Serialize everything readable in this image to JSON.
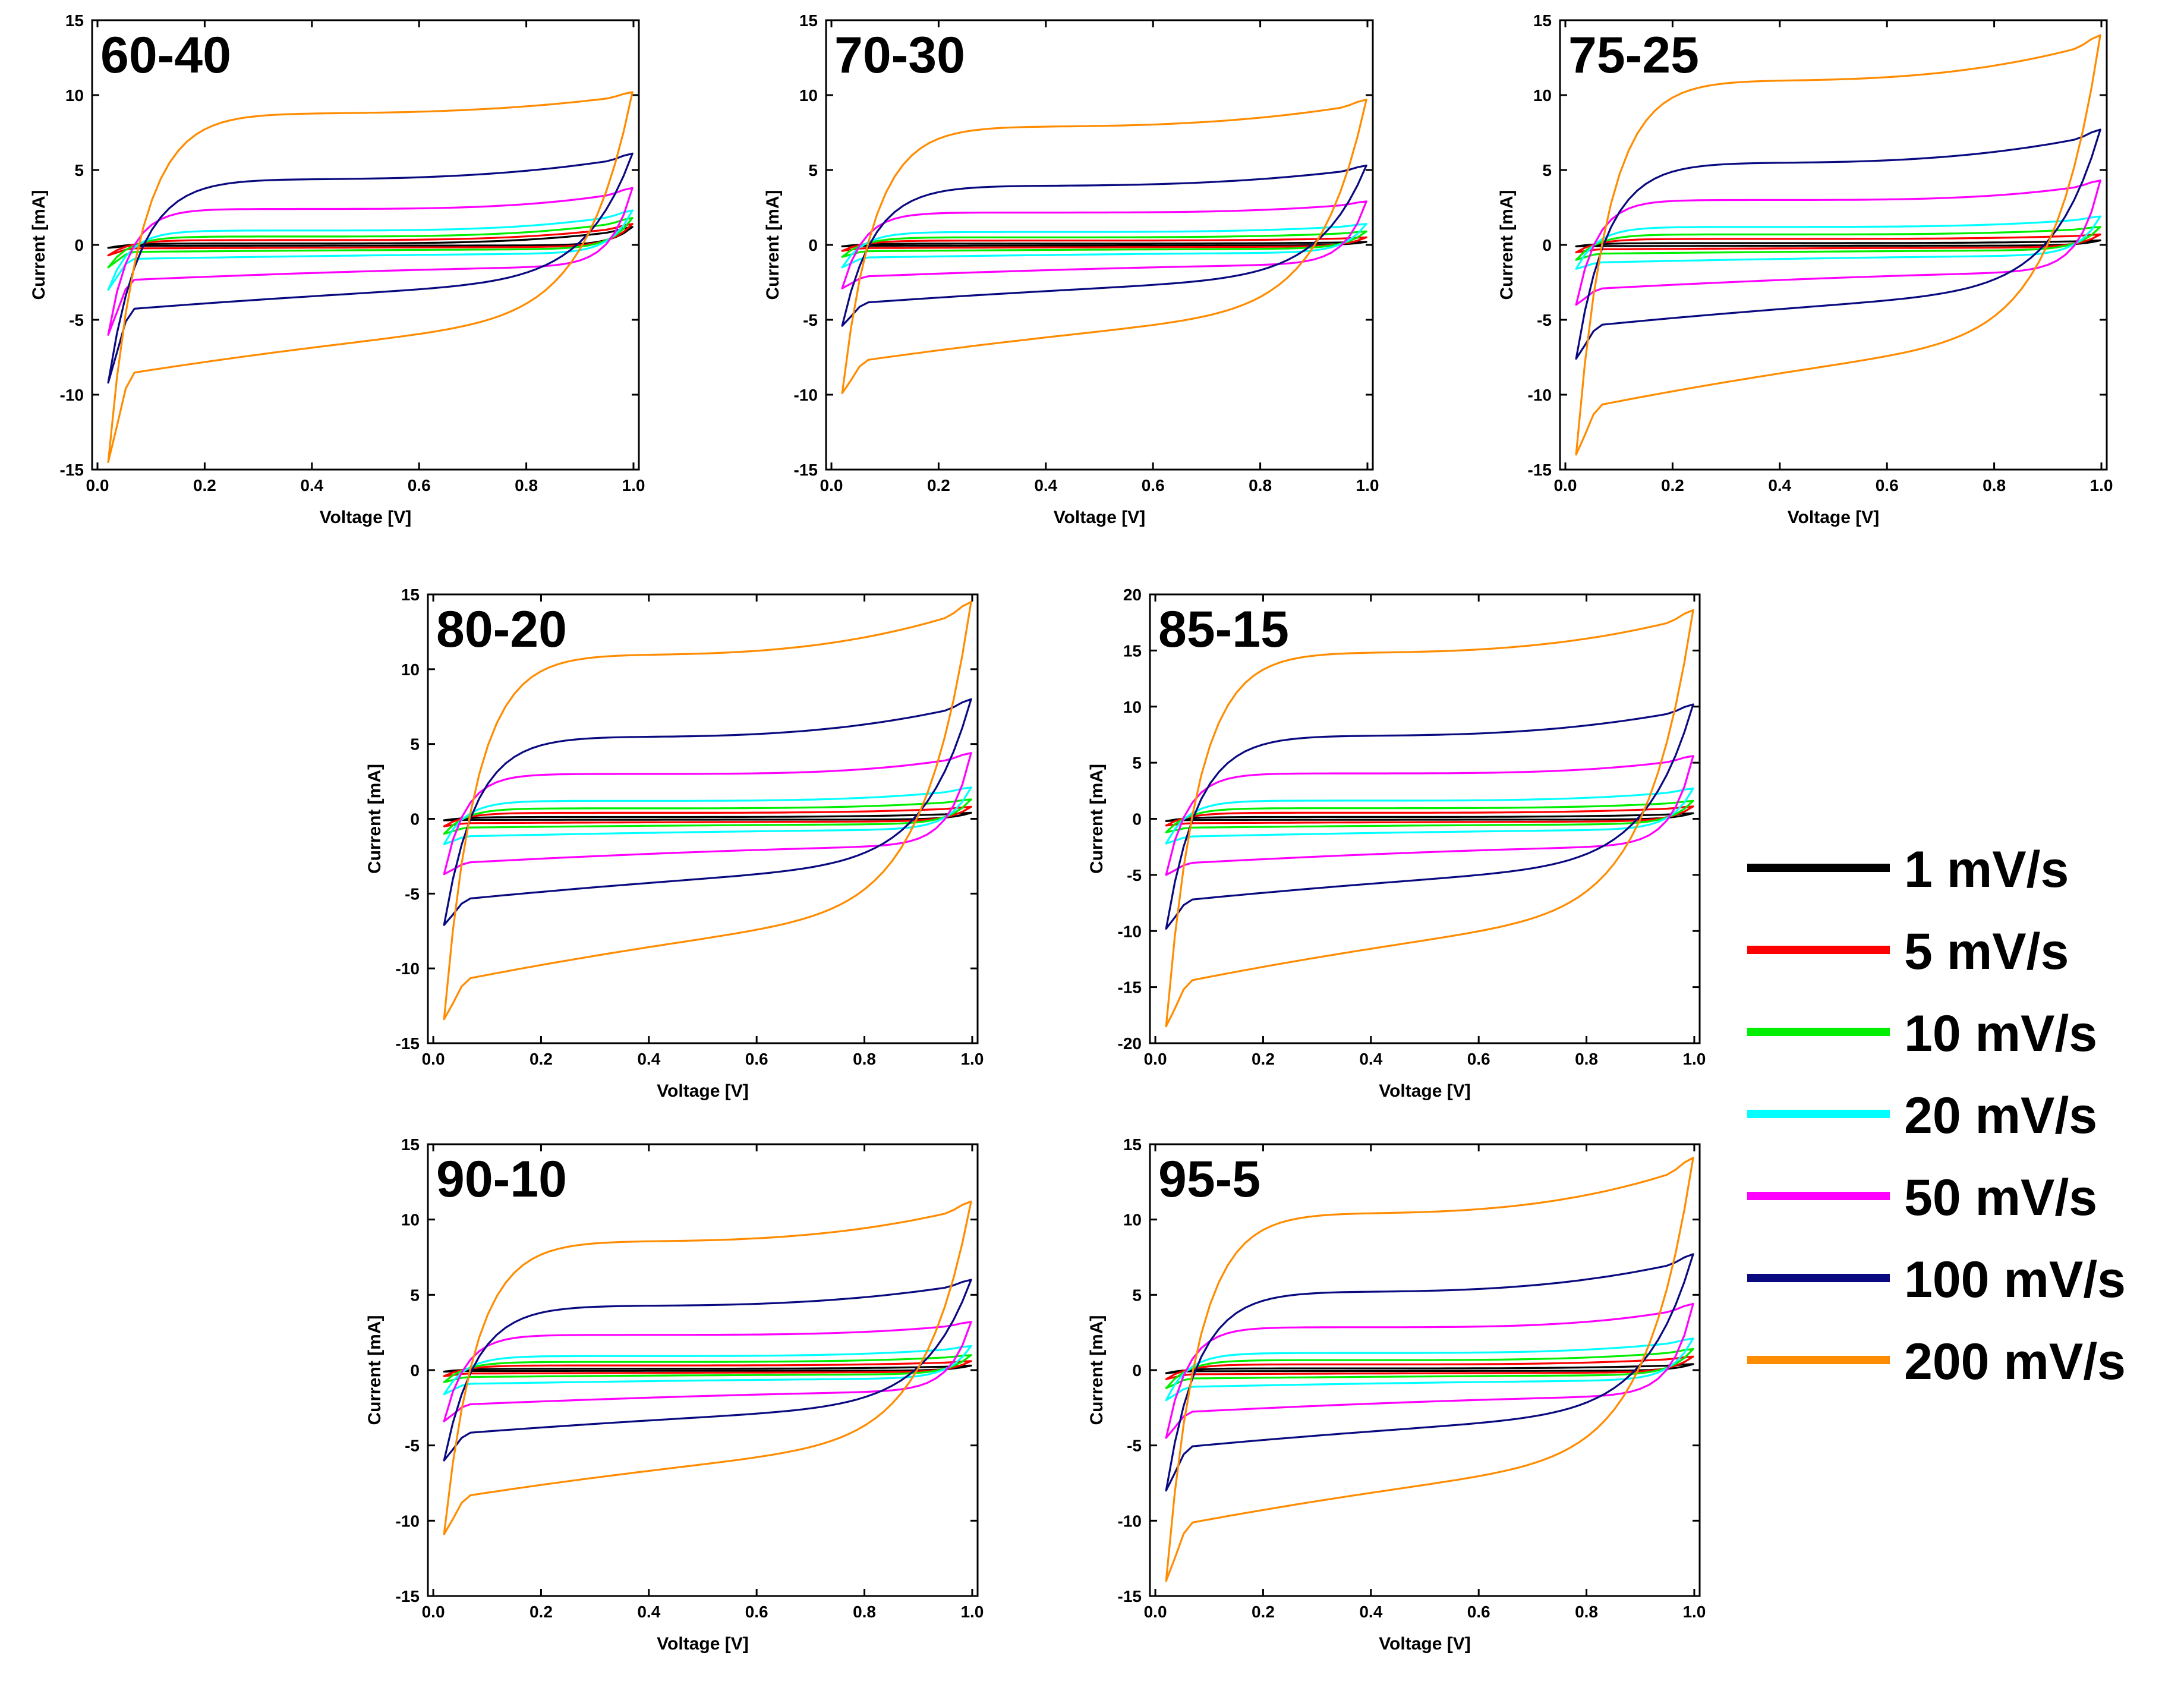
{
  "chart_data": {
    "type": "line",
    "description_axes": "cyclic voltammetry",
    "xlabel": "Voltage [V]",
    "ylabel": "Current [mA]",
    "xlim": [
      0,
      1
    ],
    "xticks": [
      0.0,
      0.2,
      0.4,
      0.6,
      0.8,
      1.0
    ],
    "xtick_labels": [
      "0.0",
      "0.2",
      "0.4",
      "0.6",
      "0.8",
      "1.0"
    ],
    "series": [
      {
        "name": "1 mV/s",
        "color": "#000000",
        "upper_current": 0.12,
        "lower_current": -0.08
      },
      {
        "name": "5 mV/s",
        "color": "#ff0000",
        "upper_current": 0.4,
        "lower_current": -0.3
      },
      {
        "name": "10 mV/s",
        "color": "#00ee00",
        "upper_current": 0.7,
        "lower_current": -0.6
      },
      {
        "name": "20 mV/s",
        "color": "#00ffff",
        "upper_current": 1.2,
        "lower_current": -1.2
      },
      {
        "name": "50 mV/s",
        "color": "#ff00ff",
        "upper_current": 3.0,
        "lower_current": -3.0
      },
      {
        "name": "100 mV/s",
        "color": "#0a0a80",
        "upper_current": 5.5,
        "lower_current": -5.5
      },
      {
        "name": "200 mV/s",
        "color": "#ff8c00",
        "upper_current": 11.0,
        "lower_current": -11.0
      }
    ],
    "panels": [
      {
        "title": "60-40",
        "ylim": [
          -15,
          15
        ],
        "yticks": [
          -15,
          -10,
          -5,
          0,
          5,
          10,
          15
        ],
        "scale": 0.8,
        "end_currents": [
          1.2,
          1.4,
          1.8,
          2.3,
          3.8,
          6.1,
          10.2
        ],
        "start_currents": [
          -0.2,
          -0.7,
          -1.5,
          -3.0,
          -6.0,
          -9.2,
          -14.5
        ]
      },
      {
        "title": "70-30",
        "ylim": [
          -15,
          15
        ],
        "yticks": [
          -15,
          -10,
          -5,
          0,
          5,
          10,
          15
        ],
        "scale": 0.72,
        "end_currents": [
          0.2,
          0.5,
          0.9,
          1.4,
          2.9,
          5.3,
          9.7
        ],
        "start_currents": [
          -0.1,
          -0.4,
          -0.8,
          -1.5,
          -2.9,
          -5.4,
          -9.9
        ]
      },
      {
        "title": "75-25",
        "ylim": [
          -15,
          15
        ],
        "yticks": [
          -15,
          -10,
          -5,
          0,
          5,
          10,
          15
        ],
        "scale": 1.0,
        "end_currents": [
          0.3,
          0.7,
          1.2,
          1.9,
          4.3,
          7.7,
          14.0
        ],
        "start_currents": [
          -0.1,
          -0.5,
          -1.0,
          -1.6,
          -4.0,
          -7.6,
          -14.0
        ]
      },
      {
        "title": "80-20",
        "ylim": [
          -15,
          15
        ],
        "yticks": [
          -15,
          -10,
          -5,
          0,
          5,
          10,
          15
        ],
        "scale": 1.0,
        "end_currents": [
          0.4,
          0.8,
          1.3,
          2.1,
          4.4,
          8.0,
          14.5
        ],
        "start_currents": [
          -0.1,
          -0.5,
          -1.0,
          -1.7,
          -3.7,
          -7.1,
          -13.4
        ]
      },
      {
        "title": "85-15",
        "ylim": [
          -20,
          20
        ],
        "yticks": [
          -20,
          -15,
          -10,
          -5,
          0,
          5,
          10,
          15,
          20
        ],
        "scale": 1.35,
        "end_currents": [
          0.5,
          1.1,
          1.6,
          2.7,
          5.6,
          10.2,
          18.6
        ],
        "start_currents": [
          -0.2,
          -0.6,
          -1.2,
          -2.2,
          -5.0,
          -9.8,
          -18.5
        ]
      },
      {
        "title": "90-10",
        "ylim": [
          -15,
          15
        ],
        "yticks": [
          -15,
          -10,
          -5,
          0,
          5,
          10,
          15
        ],
        "scale": 0.78,
        "end_currents": [
          0.3,
          0.6,
          1.0,
          1.6,
          3.2,
          6.0,
          11.2
        ],
        "start_currents": [
          -0.1,
          -0.4,
          -0.8,
          -1.6,
          -3.4,
          -6.0,
          -10.9
        ]
      },
      {
        "title": "95-5",
        "ylim": [
          -15,
          15
        ],
        "yticks": [
          -15,
          -10,
          -5,
          0,
          5,
          10,
          15
        ],
        "scale": 0.95,
        "end_currents": [
          0.4,
          0.9,
          1.4,
          2.1,
          4.4,
          7.7,
          14.1
        ],
        "start_currents": [
          -0.2,
          -0.6,
          -1.2,
          -2.0,
          -4.5,
          -8.0,
          -14.0
        ]
      }
    ],
    "legend_position": "right"
  }
}
